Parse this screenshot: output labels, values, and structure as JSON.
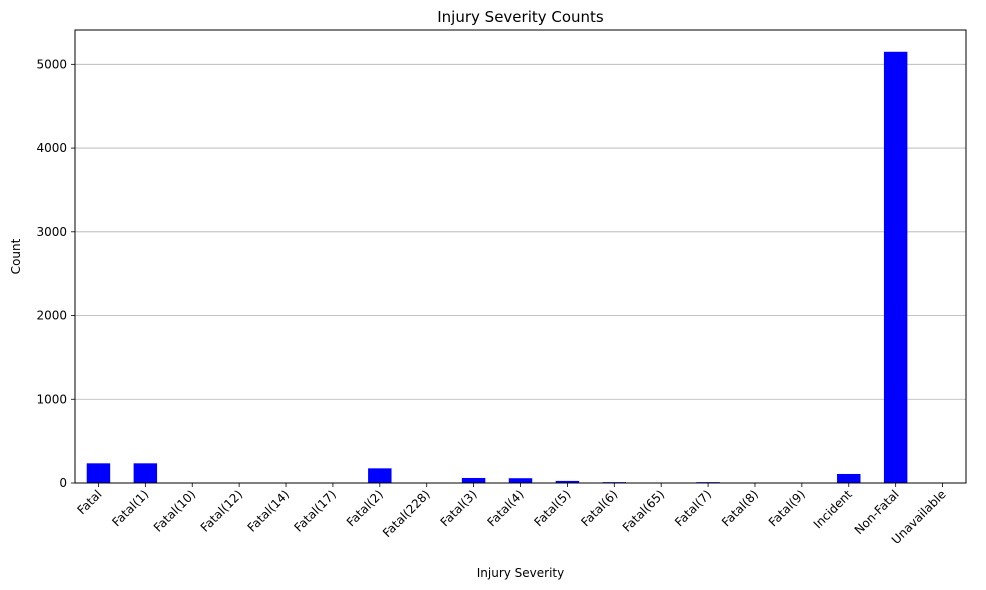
{
  "chart_data": {
    "type": "bar",
    "title": "Injury Severity Counts",
    "xlabel": "Injury Severity",
    "ylabel": "Count",
    "categories": [
      "Fatal",
      "Fatal(1)",
      "Fatal(10)",
      "Fatal(12)",
      "Fatal(14)",
      "Fatal(17)",
      "Fatal(2)",
      "Fatal(228)",
      "Fatal(3)",
      "Fatal(4)",
      "Fatal(5)",
      "Fatal(6)",
      "Fatal(65)",
      "Fatal(7)",
      "Fatal(8)",
      "Fatal(9)",
      "Incident",
      "Non-Fatal",
      "Unavailable"
    ],
    "values": [
      235,
      235,
      1,
      1,
      1,
      1,
      175,
      1,
      60,
      57,
      25,
      10,
      1,
      10,
      6,
      2,
      108,
      5150,
      1
    ],
    "ylim": [
      0,
      5410
    ],
    "yticks": [
      0,
      1000,
      2000,
      3000,
      4000,
      5000
    ],
    "grid": "y",
    "bar_color": "#0000ff"
  }
}
